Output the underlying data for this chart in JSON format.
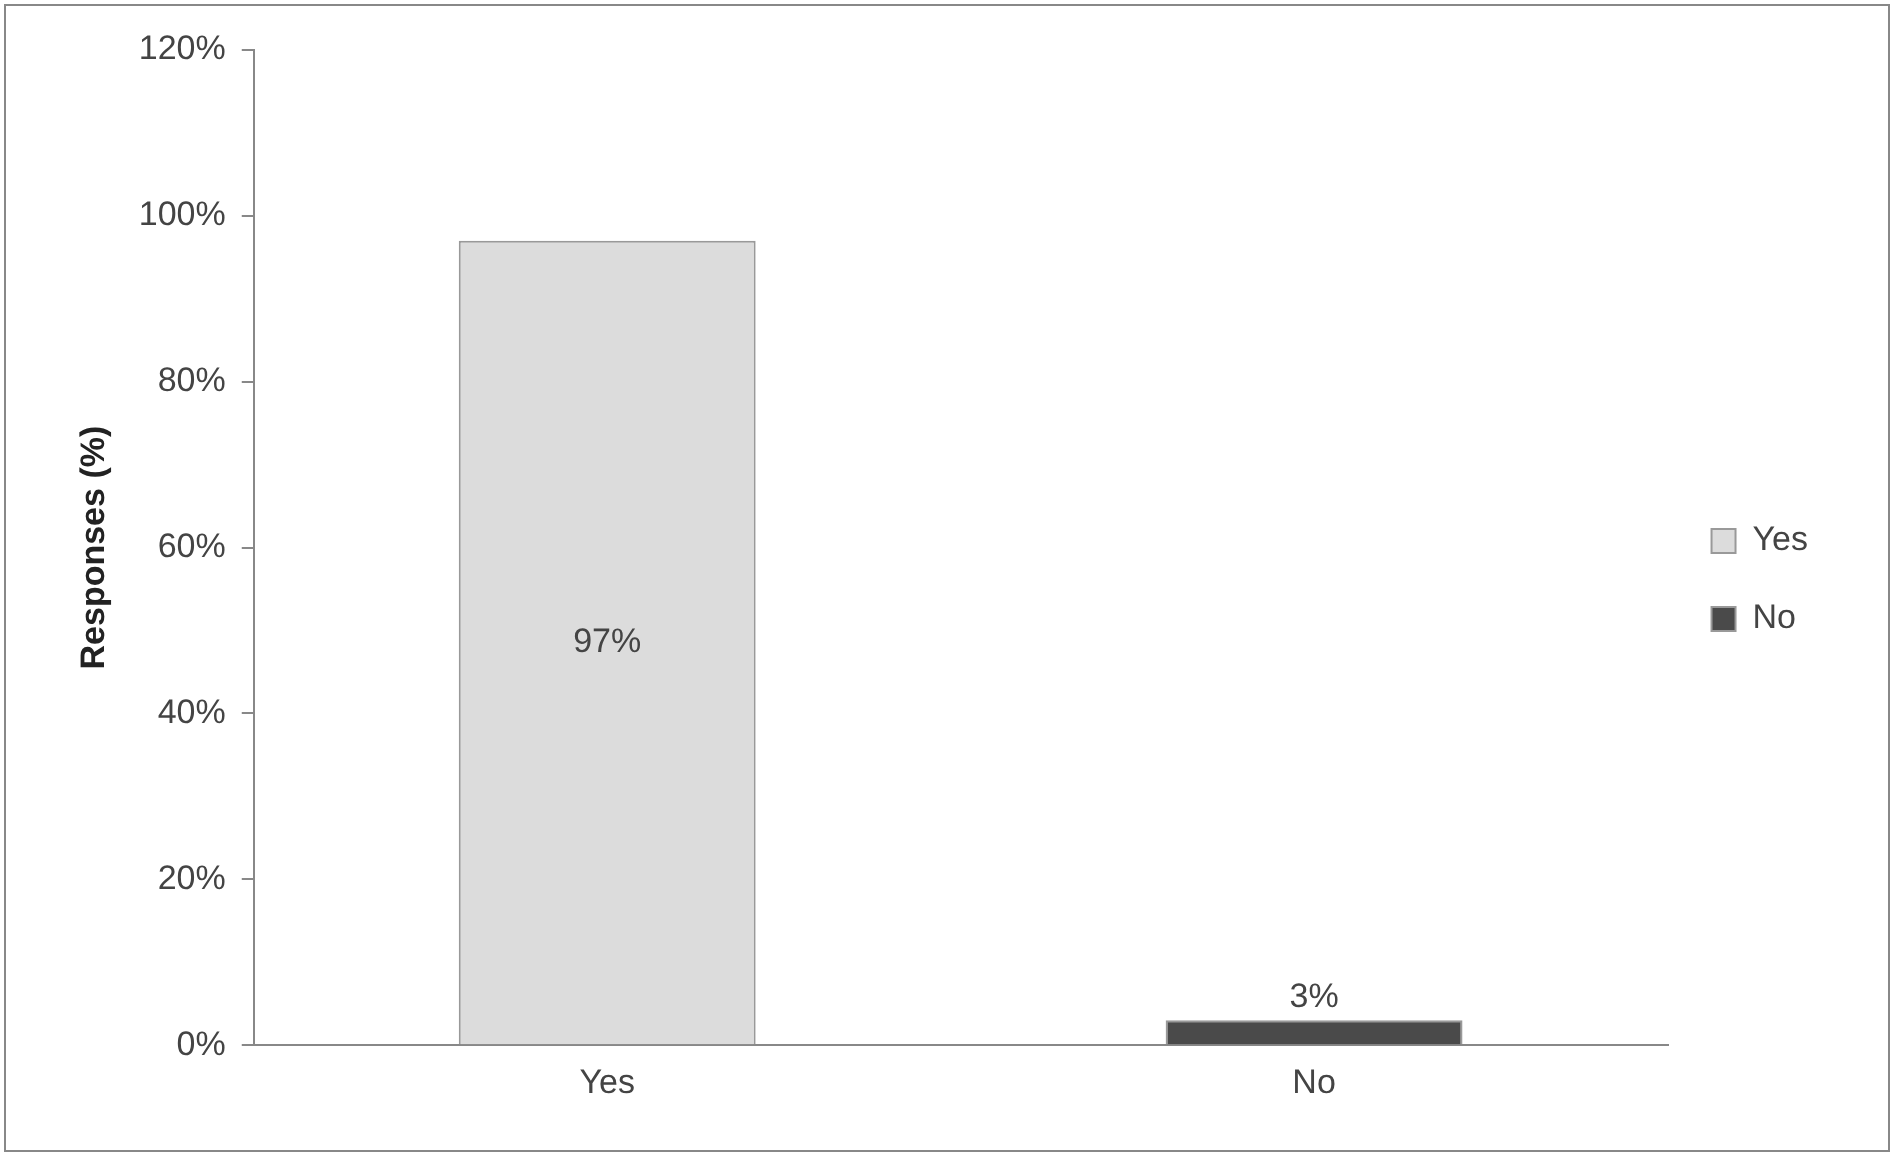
{
  "chart_data": {
    "type": "bar",
    "ylabel": "Responses (%)",
    "categories": [
      "Yes",
      "No"
    ],
    "series": [
      {
        "name": "Yes",
        "color": "#dcdcdc",
        "values": [
          97,
          null
        ],
        "value_labels": [
          "97%",
          null
        ]
      },
      {
        "name": "No",
        "color": "#4a4a4a",
        "values": [
          null,
          3
        ],
        "value_labels": [
          null,
          "3%"
        ]
      }
    ],
    "ylim": [
      0,
      120
    ],
    "yticks": [
      {
        "value": 0,
        "label": "0%"
      },
      {
        "value": 20,
        "label": "20%"
      },
      {
        "value": 40,
        "label": "40%"
      },
      {
        "value": 60,
        "label": "60%"
      },
      {
        "value": 80,
        "label": "80%"
      },
      {
        "value": 100,
        "label": "100%"
      },
      {
        "value": 120,
        "label": "120%"
      }
    ],
    "grid": false,
    "legend": "right"
  }
}
